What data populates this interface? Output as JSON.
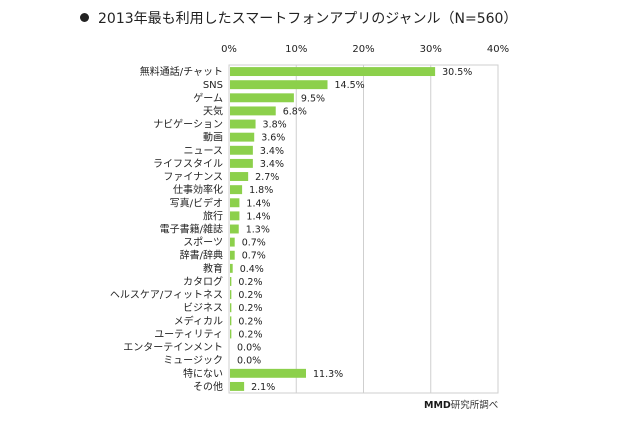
{
  "chart_data": {
    "type": "bar",
    "orientation": "horizontal",
    "title": "2013年最も利用したスマートフォンアプリのジャンル（N=560）",
    "xlabel": "",
    "ylabel": "",
    "xlim": [
      0,
      40
    ],
    "x_ticks": [
      "0%",
      "10%",
      "20%",
      "30%",
      "40%"
    ],
    "x_tick_values": [
      0,
      10,
      20,
      30,
      40
    ],
    "grid": true,
    "bar_color": "#8cd04b",
    "categories": [
      "無料通話/チャット",
      "SNS",
      "ゲーム",
      "天気",
      "ナビゲーション",
      "動画",
      "ニュース",
      "ライフスタイル",
      "ファイナンス",
      "仕事効率化",
      "写真/ビデオ",
      "旅行",
      "電子書籍/雑誌",
      "スポーツ",
      "辞書/辞典",
      "教育",
      "カタログ",
      "ヘルスケア/フィットネス",
      "ビジネス",
      "メディカル",
      "ユーティリティ",
      "エンターテインメント",
      "ミュージック",
      "特にない",
      "その他"
    ],
    "values": [
      30.5,
      14.5,
      9.5,
      6.8,
      3.8,
      3.6,
      3.4,
      3.4,
      2.7,
      1.8,
      1.4,
      1.4,
      1.3,
      0.7,
      0.7,
      0.4,
      0.2,
      0.2,
      0.2,
      0.2,
      0.2,
      0.0,
      0.0,
      11.3,
      2.1
    ],
    "value_labels": [
      "30.5%",
      "14.5%",
      "9.5%",
      "6.8%",
      "3.8%",
      "3.6%",
      "3.4%",
      "3.4%",
      "2.7%",
      "1.8%",
      "1.4%",
      "1.4%",
      "1.3%",
      "0.7%",
      "0.7%",
      "0.4%",
      "0.2%",
      "0.2%",
      "0.2%",
      "0.2%",
      "0.2%",
      "0.0%",
      "0.0%",
      "11.3%",
      "2.1%"
    ]
  },
  "source": {
    "brand": "MMD",
    "text": "研究所調べ"
  }
}
